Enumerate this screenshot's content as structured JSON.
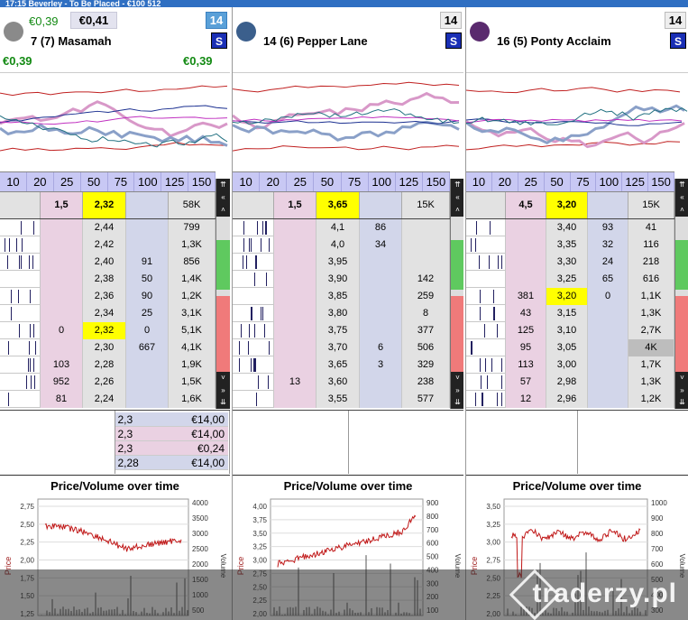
{
  "window_title": "17:15 Beverley - To Be Placed - €100 512",
  "stakes": [
    "10",
    "20",
    "25",
    "50",
    "75",
    "100",
    "125",
    "150"
  ],
  "runners": [
    {
      "name": "7  (7) Masamah",
      "number": "14",
      "number_highlight": true,
      "pl_top": "€0,39",
      "pl_top_box": "€0,41",
      "pl_left": "€0,39",
      "pl_right": "€0,39",
      "s_label": "S",
      "silk_color": "#8a8a8a",
      "top": {
        "back": "1,5",
        "price": "2,32",
        "vol": "58K"
      },
      "ladder": [
        {
          "back": "",
          "price": "2,44",
          "lay": "",
          "vol": "799"
        },
        {
          "back": "",
          "price": "2,42",
          "lay": "",
          "vol": "1,3K"
        },
        {
          "back": "",
          "price": "2,40",
          "lay": "91",
          "vol": "856"
        },
        {
          "back": "",
          "price": "2,38",
          "lay": "50",
          "vol": "1,4K"
        },
        {
          "back": "",
          "price": "2,36",
          "lay": "90",
          "vol": "1,2K"
        },
        {
          "back": "",
          "price": "2,34",
          "lay": "25",
          "vol": "3,1K"
        },
        {
          "back": "0",
          "price": "2,32",
          "lay": "0",
          "vol": "5,1K",
          "ltp": true
        },
        {
          "back": "",
          "price": "2,30",
          "lay": "667",
          "vol": "4,1K"
        },
        {
          "back": "103",
          "price": "2,28",
          "lay": "",
          "vol": "1,9K"
        },
        {
          "back": "952",
          "price": "2,26",
          "lay": "",
          "vol": "1,5K"
        },
        {
          "back": "81",
          "price": "2,24",
          "lay": "",
          "vol": "1,6K"
        }
      ],
      "bets": [
        {
          "odds": "2,3",
          "stake": "€14,00",
          "type": "lay"
        },
        {
          "odds": "2,3",
          "stake": "€14,00",
          "type": "back"
        },
        {
          "odds": "2,3",
          "stake": "€0,24",
          "type": "back"
        },
        {
          "odds": "2,28",
          "stake": "€14,00",
          "type": "lay"
        }
      ],
      "pv": {
        "title": "Price/Volume over time",
        "y_ticks": [
          "2,75",
          "2,50",
          "2,25",
          "2,00",
          "1,75",
          "1,50",
          "1,25"
        ],
        "vol_ticks": [
          "4000",
          "3500",
          "3000",
          "2500",
          "2000",
          "1500",
          "1000",
          "500"
        ],
        "ylabel": "Price",
        "y2label": "Volume"
      }
    },
    {
      "name": "14  (6) Pepper Lane",
      "number": "14",
      "number_highlight": false,
      "pl_top": "",
      "pl_top_box": "",
      "pl_left": "",
      "pl_right": "",
      "s_label": "S",
      "silk_color": "#3b5f8c",
      "top": {
        "back": "1,5",
        "price": "3,65",
        "vol": "15K"
      },
      "ladder": [
        {
          "back": "",
          "price": "4,1",
          "lay": "86",
          "vol": ""
        },
        {
          "back": "",
          "price": "4,0",
          "lay": "34",
          "vol": ""
        },
        {
          "back": "",
          "price": "3,95",
          "lay": "",
          "vol": ""
        },
        {
          "back": "",
          "price": "3,90",
          "lay": "",
          "vol": "142"
        },
        {
          "back": "",
          "price": "3,85",
          "lay": "",
          "vol": "259"
        },
        {
          "back": "",
          "price": "3,80",
          "lay": "",
          "vol": "8"
        },
        {
          "back": "",
          "price": "3,75",
          "lay": "",
          "vol": "377"
        },
        {
          "back": "",
          "price": "3,70",
          "lay": "6",
          "vol": "506"
        },
        {
          "back": "",
          "price": "3,65",
          "lay": "3",
          "vol": "329"
        },
        {
          "back": "13",
          "price": "3,60",
          "lay": "",
          "vol": "238"
        },
        {
          "back": "",
          "price": "3,55",
          "lay": "",
          "vol": "577"
        }
      ],
      "bets": [],
      "pv": {
        "title": "Price/Volume over time",
        "y_ticks": [
          "4,00",
          "3,75",
          "3,50",
          "3,25",
          "3,00",
          "2,75",
          "2,50",
          "2,25",
          "2,00"
        ],
        "vol_ticks": [
          "900",
          "800",
          "700",
          "600",
          "500",
          "400",
          "300",
          "200",
          "100"
        ],
        "ylabel": "Price",
        "y2label": "Volume"
      }
    },
    {
      "name": "16  (5) Ponty Acclaim",
      "number": "14",
      "number_highlight": false,
      "pl_top": "",
      "pl_top_box": "",
      "pl_left": "",
      "pl_right": "",
      "s_label": "S",
      "silk_color": "#5a2a6e",
      "top": {
        "back": "4,5",
        "price": "3,20",
        "vol": "15K"
      },
      "ladder": [
        {
          "back": "",
          "price": "3,40",
          "lay": "93",
          "vol": "41"
        },
        {
          "back": "",
          "price": "3,35",
          "lay": "32",
          "vol": "116"
        },
        {
          "back": "",
          "price": "3,30",
          "lay": "24",
          "vol": "218"
        },
        {
          "back": "",
          "price": "3,25",
          "lay": "65",
          "vol": "616"
        },
        {
          "back": "381",
          "price": "3,20",
          "lay": "0",
          "vol": "1,1K",
          "ltp": true
        },
        {
          "back": "43",
          "price": "3,15",
          "lay": "",
          "vol": "1,3K"
        },
        {
          "back": "125",
          "price": "3,10",
          "lay": "",
          "vol": "2,7K"
        },
        {
          "back": "95",
          "price": "3,05",
          "lay": "",
          "vol": "4K",
          "dark": true
        },
        {
          "back": "113",
          "price": "3,00",
          "lay": "",
          "vol": "1,7K"
        },
        {
          "back": "57",
          "price": "2,98",
          "lay": "",
          "vol": "1,3K"
        },
        {
          "back": "12",
          "price": "2,96",
          "lay": "",
          "vol": "1,2K"
        }
      ],
      "bets": [],
      "pv": {
        "title": "Price/Volume over time",
        "y_ticks": [
          "3,50",
          "3,25",
          "3,00",
          "2,75",
          "2,50",
          "2,25",
          "2,00"
        ],
        "vol_ticks": [
          "1000",
          "900",
          "800",
          "700",
          "600",
          "500",
          "400",
          "300"
        ],
        "ylabel": "Price",
        "y2label": "Volume"
      }
    }
  ],
  "watermark": "traderzy.pl"
}
